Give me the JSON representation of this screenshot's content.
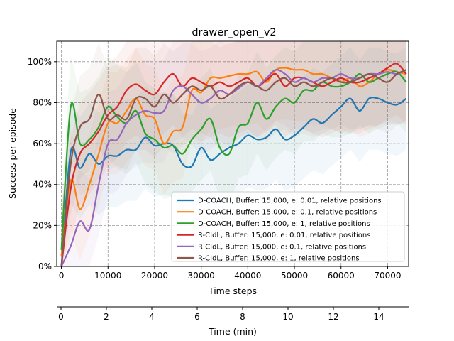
{
  "chart_data": {
    "type": "line",
    "title": "drawer_open_v2",
    "xlabel": "Time steps",
    "ylabel": "Success per episode",
    "xlim": [
      -1000,
      74500
    ],
    "ylim": [
      0,
      110
    ],
    "xticks": [
      0,
      10000,
      20000,
      30000,
      40000,
      50000,
      60000,
      70000
    ],
    "xtick_labels": [
      "0",
      "10000",
      "20000",
      "30000",
      "40000",
      "50000",
      "60000",
      "70000"
    ],
    "yticks": [
      0,
      20,
      40,
      60,
      80,
      100
    ],
    "ytick_labels": [
      "0%",
      "20%",
      "40%",
      "60%",
      "80%",
      "100%"
    ],
    "grid": true,
    "legend_position": "lower-right",
    "secondary_x_axis": {
      "label": "Time (min)",
      "lim": [
        0,
        15.5
      ],
      "ticks": [
        0,
        2,
        4,
        6,
        8,
        10,
        12,
        14
      ],
      "tick_labels": [
        "0",
        "2",
        "4",
        "6",
        "8",
        "10",
        "12",
        "14"
      ]
    },
    "x": [
      0,
      2000,
      4000,
      6000,
      8000,
      10000,
      12000,
      14000,
      16000,
      18000,
      20000,
      22000,
      24000,
      26000,
      28000,
      30000,
      32000,
      34000,
      36000,
      38000,
      40000,
      42000,
      44000,
      46000,
      48000,
      50000,
      52000,
      54000,
      56000,
      58000,
      60000,
      62000,
      64000,
      66000,
      68000,
      70000,
      72000,
      74000
    ],
    "series": [
      {
        "name": "D-COACH, Buffer: 15,000, e: 0.01, relative positions",
        "color": "#1f77b4",
        "values": [
          0,
          56,
          48,
          55,
          50,
          54,
          54,
          57,
          57,
          63,
          59,
          60,
          59,
          50,
          49,
          58,
          52,
          55,
          58,
          60,
          64,
          62,
          63,
          67,
          62,
          64,
          68,
          72,
          70,
          74,
          78,
          82,
          76,
          82,
          82,
          80,
          79,
          82
        ]
      },
      {
        "name": "D-COACH, Buffer: 15,000, e: 0.1, relative positions",
        "color": "#ff7f0e",
        "values": [
          5,
          42,
          28,
          40,
          55,
          70,
          70,
          76,
          82,
          74,
          72,
          60,
          66,
          68,
          86,
          85,
          92,
          92,
          93,
          94,
          94,
          95,
          90,
          96,
          97,
          96,
          96,
          94,
          94,
          92,
          90,
          92,
          88,
          90,
          94,
          96,
          95,
          94
        ]
      },
      {
        "name": "D-COACH, Buffer: 15,000, e: 1, relative positions",
        "color": "#2ca02c",
        "values": [
          8,
          78,
          60,
          62,
          68,
          78,
          73,
          70,
          76,
          65,
          62,
          58,
          59,
          55,
          62,
          67,
          72,
          58,
          55,
          68,
          70,
          80,
          72,
          78,
          82,
          80,
          86,
          86,
          90,
          88,
          88,
          90,
          94,
          90,
          92,
          94,
          95,
          90
        ]
      },
      {
        "name": "R-CIdL, Buffer: 15,000, e: 0.01, relative positions",
        "color": "#d62728",
        "values": [
          0,
          38,
          55,
          60,
          66,
          74,
          78,
          86,
          89,
          86,
          84,
          90,
          94,
          88,
          92,
          90,
          88,
          90,
          88,
          90,
          92,
          88,
          91,
          94,
          88,
          92,
          92,
          90,
          88,
          90,
          92,
          90,
          90,
          92,
          94,
          97,
          99,
          94
        ]
      },
      {
        "name": "R-CIdL, Buffer: 15,000, e: 0.1, relative positions",
        "color": "#9467bd",
        "values": [
          0,
          10,
          22,
          18,
          40,
          60,
          62,
          70,
          74,
          76,
          75,
          76,
          86,
          88,
          84,
          80,
          82,
          86,
          84,
          87,
          90,
          88,
          92,
          96,
          94,
          90,
          92,
          90,
          92,
          92,
          94,
          92,
          92,
          94,
          94,
          95,
          94,
          96
        ]
      },
      {
        "name": "R-CIdL, Buffer: 15,000, e: 1, relative positions",
        "color": "#8c564b",
        "values": [
          0,
          50,
          68,
          72,
          84,
          72,
          74,
          72,
          82,
          82,
          78,
          84,
          80,
          84,
          88,
          86,
          88,
          82,
          84,
          88,
          90,
          88,
          86,
          90,
          92,
          88,
          90,
          88,
          90,
          92,
          90,
          90,
          92,
          94,
          92,
          90,
          94,
          96
        ]
      }
    ]
  }
}
